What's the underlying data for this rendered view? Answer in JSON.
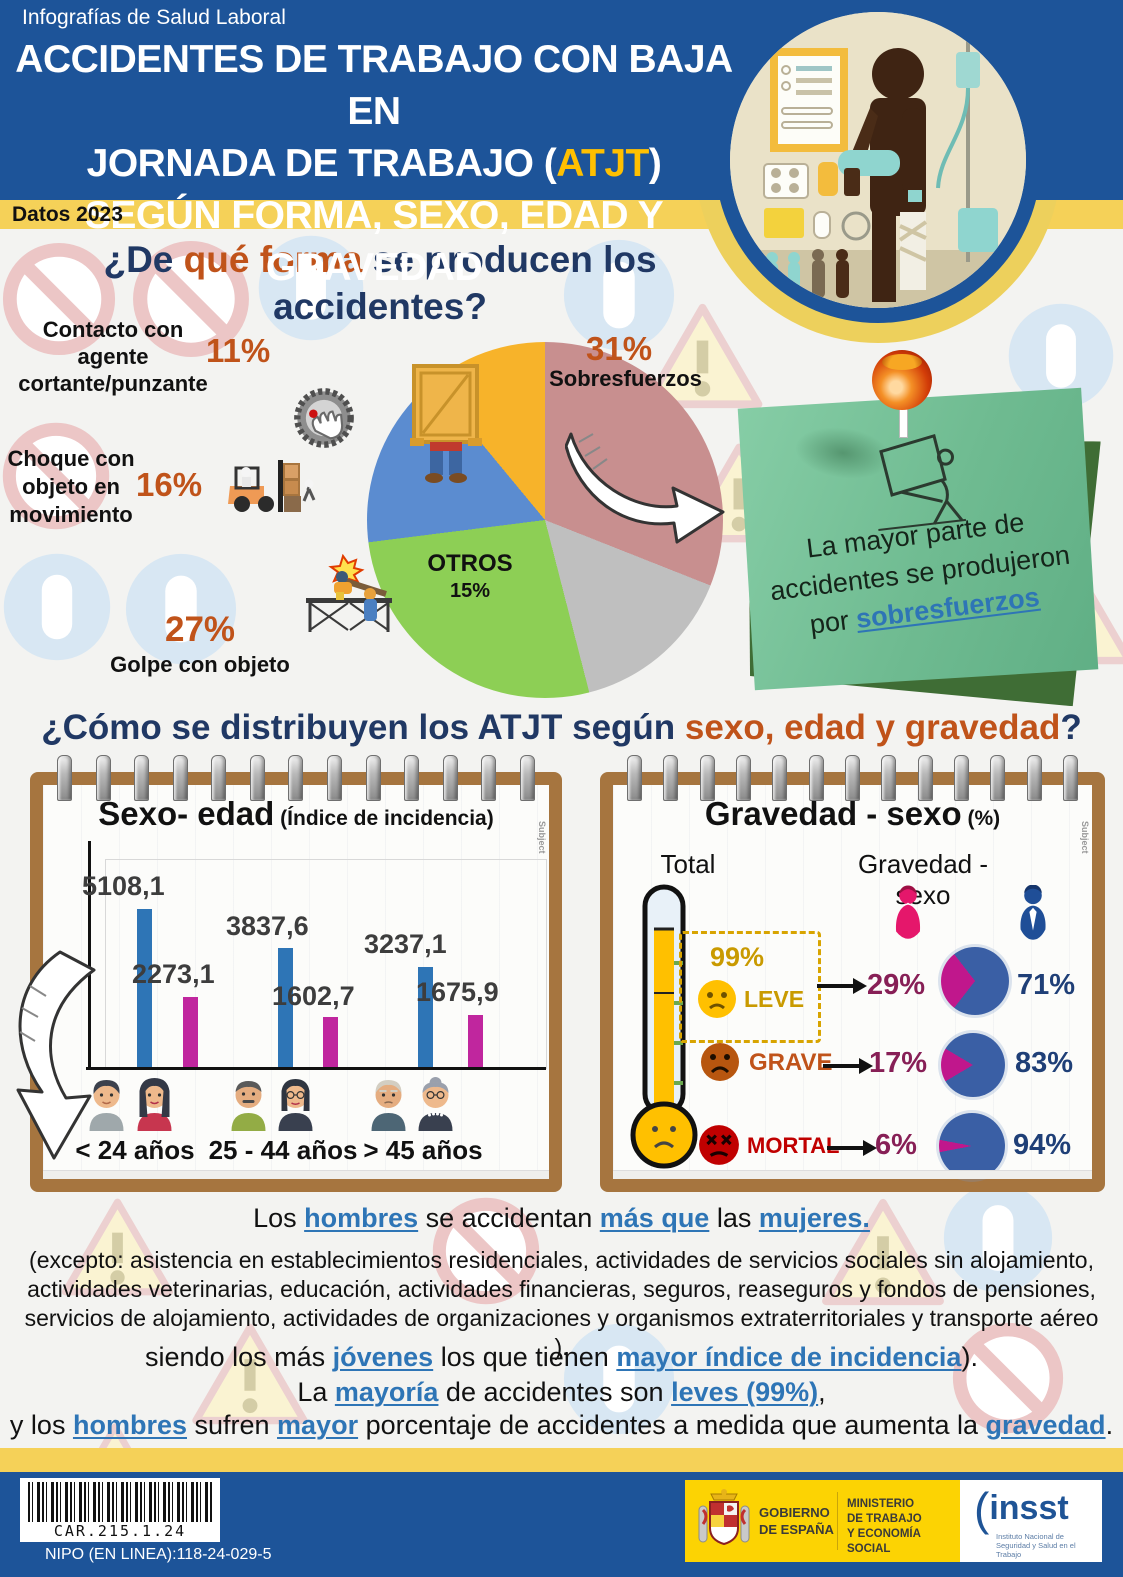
{
  "colors": {
    "header_blue": "#1d5499",
    "band_yellow": "#f5d158",
    "navy": "#203864",
    "orange": "#c0531a",
    "accent_yellow": "#ffc000",
    "male_bar": "#2e75b6",
    "female_bar": "#c0269e",
    "mini_pie_male": "#3a5fa5",
    "mini_pie_female": "#c0178c",
    "leve_gold": "#c99a00",
    "grave_orange": "#c0531a",
    "mortal_red": "#c00000",
    "link_blue": "#2e75b6",
    "postit_green": "#74c096",
    "footer_yellow": "#fcd303"
  },
  "header": {
    "kicker": "Infografías de Salud Laboral",
    "title_line1": "ACCIDENTES DE TRABAJO CON BAJA EN",
    "title_line2_pre": "JORNADA DE TRABAJO (",
    "title_line2_acc": "ATJT",
    "title_line2_post": ")",
    "title_line3": "SEGÚN FORMA, SEXO, EDAD Y GRAVEDAD",
    "badge": "Datos 2023"
  },
  "forma": {
    "q1": "¿De ",
    "q2": "qué forma",
    "q3": " se producen los",
    "q4": "accidentes?",
    "contacto_text": "Contacto con agente cortante/punzante",
    "contacto_pct": "11%",
    "sobres_pct": "31%",
    "sobres_text": "Sobresfuerzos",
    "choque_text": "Choque con objeto en movimiento",
    "choque_pct": "16%",
    "golpe_pct": "27%",
    "golpe_text": "Golpe con objeto",
    "otros_name": "OTROS",
    "otros_pct": "15%",
    "postit_l1": "La mayor parte de",
    "postit_l2": "accidentes se produjeron",
    "postit_l3a": "por ",
    "postit_l3b": "sobresfuerzos"
  },
  "dist": {
    "q1": "¿Cómo se distribuyen los ATJT según ",
    "q2": "sexo, edad y gravedad",
    "q3": "?"
  },
  "sexo_edad": {
    "title": "Sexo- edad",
    "subtitle": " (Índice de incidencia)",
    "side": "Subject"
  },
  "gravedad": {
    "title": "Gravedad - sexo",
    "unit": " (%)",
    "side": "Subject",
    "col_total": "Total",
    "col_right": "Gravedad - sexo",
    "leve_total": "99%",
    "leve_label": "LEVE",
    "leve_f": "29%",
    "leve_m": "71%",
    "grave_label": "GRAVE",
    "grave_f": "17%",
    "grave_m": "83%",
    "mortal_label": "MORTAL",
    "mortal_f": "6%",
    "mortal_m": "94%"
  },
  "chart_data": [
    {
      "type": "pie",
      "title": "¿De qué forma se producen los accidentes?",
      "labels": [
        "Sobresfuerzos",
        "Otros",
        "Golpe con objeto",
        "Choque con objeto en movimiento",
        "Contacto con agente cortante/punzante"
      ],
      "values": [
        31,
        15,
        27,
        16,
        11
      ],
      "unit": "%",
      "colors": [
        "#c88f8f",
        "#bfbfbf",
        "#8dcf55",
        "#5b8cd0",
        "#f7b32a"
      ],
      "legend_position": "around"
    },
    {
      "type": "bar",
      "title": "Sexo- edad (Índice de incidencia)",
      "categories": [
        "< 24 años",
        "25 - 44 años",
        "> 45 años"
      ],
      "series": [
        {
          "name": "Hombres",
          "color": "#2e75b6",
          "values": [
            5108.1,
            3837.6,
            3237.1
          ]
        },
        {
          "name": "Mujeres",
          "color": "#c0269e",
          "values": [
            2273.1,
            1602.7,
            1675.9
          ]
        }
      ],
      "value_labels_hombres": [
        "5108,1",
        "3837,6",
        "3237,1"
      ],
      "value_labels_mujeres": [
        "2273,1",
        "1602,7",
        "1675,9"
      ],
      "ylim": [
        0,
        5500
      ],
      "grid": false,
      "legend_position": "none"
    },
    {
      "type": "table",
      "title": "Gravedad - sexo (%)",
      "columns": [
        "Gravedad",
        "Total",
        "Mujeres",
        "Hombres"
      ],
      "rows": [
        {
          "label": "LEVE",
          "total": 99,
          "female": 29,
          "male": 71
        },
        {
          "label": "GRAVE",
          "female": 17,
          "male": 83
        },
        {
          "label": "MORTAL",
          "female": 6,
          "male": 94
        }
      ]
    }
  ],
  "concl": {
    "a1": "Los ",
    "a2": "hombres",
    "a3": " se accidentan ",
    "a4": "más que",
    "a5": " las ",
    "a6": "mujeres.",
    "par": "(excepto: asistencia en establecimientos residenciales, actividades de servicios sociales sin alojamiento, actividades veterinarias, educación, actividades financieras, seguros, reaseguros y fondos de pensiones, servicios de alojamiento, actividades de organizaciones y organismos extraterritoriales y transporte aéreo ).",
    "b1": "siendo los más ",
    "b2": "jóvenes",
    "b3": " los que tienen ",
    "b4": "mayor índice de incidencia",
    "b5": ").",
    "c1": "La ",
    "c2": "mayoría",
    "c3": " de accidentes son ",
    "c4": "leves (99%)",
    "c5": ",",
    "d1": "y los ",
    "d2": "hombres",
    "d3": " sufren ",
    "d4": "mayor",
    "d5": " porcentaje de accidentes a medida que aumenta la ",
    "d6": "gravedad",
    "d7": "."
  },
  "footer": {
    "barcode": "CAR.215.1.24",
    "nipo": "NIPO (EN LINEA):118-24-029-5",
    "gob1": "GOBIERNO",
    "gob2": "DE ESPAÑA",
    "min1": "MINISTERIO",
    "min2": "DE TRABAJO",
    "min3": "Y ECONOMÍA SOCIAL",
    "insst": "insst",
    "insst_sub1": "Instituto Nacional de",
    "insst_sub2": "Seguridad y Salud en el Trabajo"
  }
}
